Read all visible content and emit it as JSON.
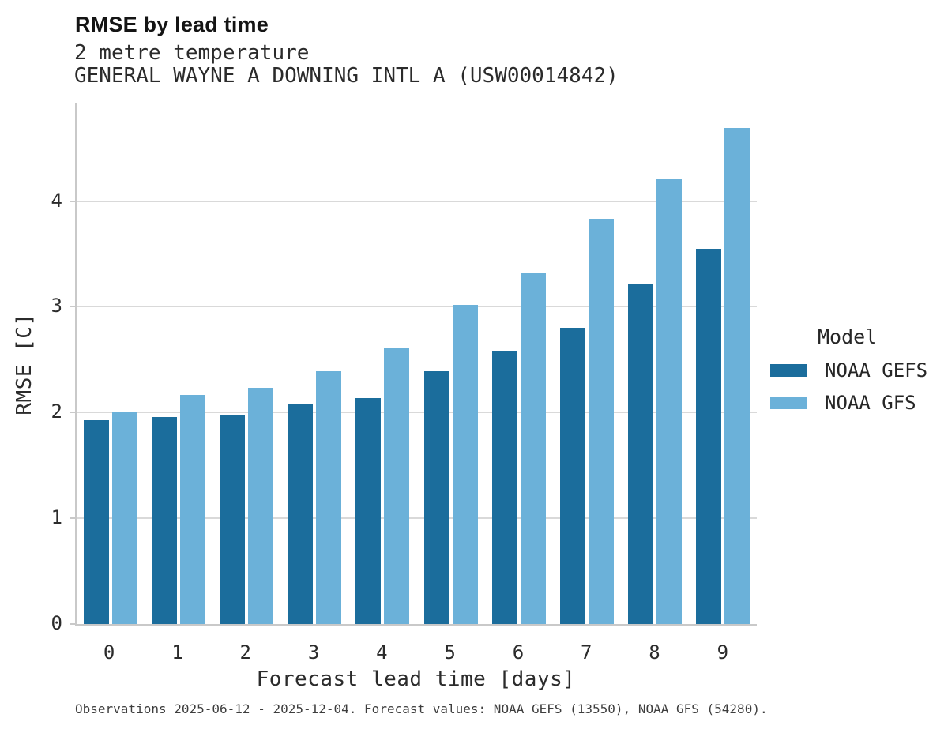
{
  "header": {
    "title": "RMSE by lead time",
    "subtitle1": "2 metre temperature",
    "subtitle2": "GENERAL WAYNE A DOWNING INTL A (USW00014842)"
  },
  "chart_data": {
    "type": "bar",
    "title": "RMSE by lead time",
    "subtitle_lines": [
      "2 metre temperature",
      "GENERAL WAYNE A DOWNING INTL A (USW00014842)"
    ],
    "categories": [
      "0",
      "1",
      "2",
      "3",
      "4",
      "5",
      "6",
      "7",
      "8",
      "9"
    ],
    "series": [
      {
        "name": "NOAA GEFS",
        "color": "#1b6d9c",
        "values": [
          1.93,
          1.96,
          1.98,
          2.08,
          2.14,
          2.39,
          2.58,
          2.8,
          3.21,
          3.55
        ]
      },
      {
        "name": "NOAA GFS",
        "color": "#6bb1d9",
        "values": [
          2.0,
          2.17,
          2.23,
          2.39,
          2.61,
          3.02,
          3.32,
          3.83,
          4.21,
          4.69
        ]
      }
    ],
    "xlabel": "Forecast lead time [days]",
    "ylabel": "RMSE [C]",
    "ylim": [
      0,
      4.93
    ],
    "yticks": [
      0,
      1,
      2,
      3,
      4
    ],
    "grid": "horizontal-only",
    "legend_title": "Model",
    "legend_position": "right"
  },
  "legend": {
    "title": "Model",
    "items": [
      {
        "label": "NOAA GEFS",
        "color": "#1b6d9c"
      },
      {
        "label": "NOAA GFS",
        "color": "#6bb1d9"
      }
    ]
  },
  "caption": "Observations 2025-06-12 - 2025-12-04. Forecast values: NOAA GEFS (13550), NOAA GFS (54280).",
  "colors": {
    "series_dark": "#1b6d9c",
    "series_light": "#6bb1d9",
    "gridline": "#d9d9d9",
    "spine": "#c9c9c9"
  }
}
